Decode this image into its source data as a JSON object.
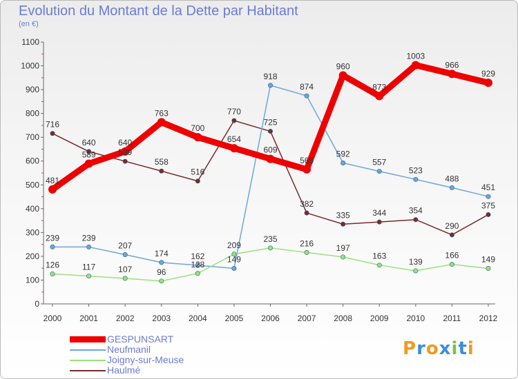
{
  "title": "Evolution du Montant de la Dette par Habitant",
  "subtitle": "(en €)",
  "logo": "Proxiti",
  "chart_data": {
    "type": "line",
    "x": [
      "2000",
      "2001",
      "2002",
      "2003",
      "2004",
      "2005",
      "2006",
      "2007",
      "2008",
      "2009",
      "2010",
      "2011",
      "2012"
    ],
    "ylim": [
      0,
      1100
    ],
    "yticks": [
      0,
      100,
      200,
      300,
      400,
      500,
      600,
      700,
      800,
      900,
      1000,
      1100
    ],
    "grid": false,
    "legend_position": "bottom-left",
    "series": [
      {
        "name": "GESPUNSART",
        "color": "#ee0000",
        "values": [
          481,
          589,
          640,
          763,
          700,
          654,
          609,
          565,
          960,
          873,
          1003,
          966,
          929
        ],
        "labels": [
          "481",
          "589",
          "640",
          "763",
          "700",
          "654",
          "609",
          "565",
          "960",
          "873",
          "1003",
          "966",
          "929"
        ]
      },
      {
        "name": "Neufmanil",
        "color": "#6ca6d9",
        "values": [
          239,
          239,
          207,
          174,
          162,
          149,
          918,
          874,
          592,
          557,
          523,
          488,
          451
        ],
        "labels": [
          "239",
          "239",
          "207",
          "174",
          "162",
          "149",
          "918",
          "874",
          "592",
          "557",
          "523",
          "488",
          "451"
        ]
      },
      {
        "name": "Joigny-sur-Meuse",
        "color": "#99e27a",
        "values": [
          126,
          117,
          107,
          96,
          128,
          209,
          235,
          216,
          197,
          163,
          139,
          166,
          149
        ],
        "labels": [
          "126",
          "117",
          "107",
          "96",
          "128",
          "209",
          "235",
          "216",
          "197",
          "163",
          "139",
          "166",
          "149"
        ]
      },
      {
        "name": "Haulmé",
        "color": "#7a2a2a",
        "values": [
          716,
          640,
          599,
          558,
          516,
          770,
          725,
          382,
          335,
          344,
          354,
          290,
          375
        ],
        "labels": [
          "716",
          "640",
          "599",
          "558",
          "516",
          "770",
          "725",
          "382",
          "335",
          "344",
          "354",
          "290",
          "375"
        ]
      }
    ]
  }
}
